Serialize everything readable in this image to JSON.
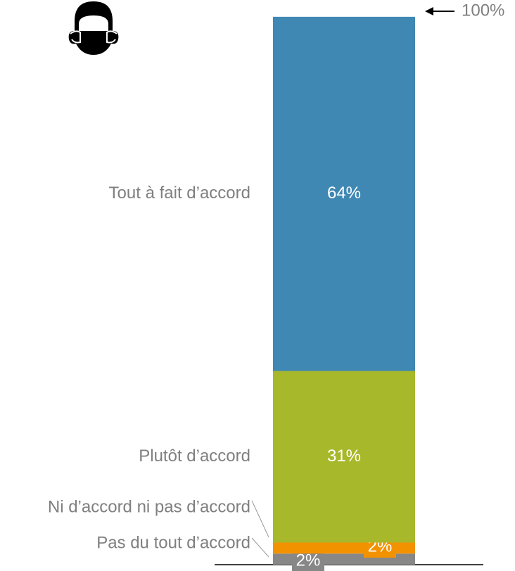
{
  "chart_data": {
    "type": "stacked_bar",
    "series": [
      {
        "name": "Pas du tout d’accord",
        "color": "#878787",
        "values": [
          2
        ],
        "value_labels": [
          "2%"
        ]
      },
      {
        "name": "Ni d’accord ni pas d’accord",
        "color": "#f39200",
        "values": [
          2
        ],
        "value_labels": [
          "2%"
        ]
      },
      {
        "name": "Plutôt d’accord",
        "color": "#a7b82a",
        "values": [
          31
        ],
        "value_labels": [
          "31%"
        ]
      },
      {
        "name": "Tout à fait d’accord",
        "color": "#4088b4",
        "values": [
          64
        ],
        "value_labels": [
          "64%"
        ]
      }
    ],
    "ylim": [
      0,
      100
    ],
    "yticks": [
      {
        "value": 100,
        "label": "100%"
      }
    ]
  }
}
